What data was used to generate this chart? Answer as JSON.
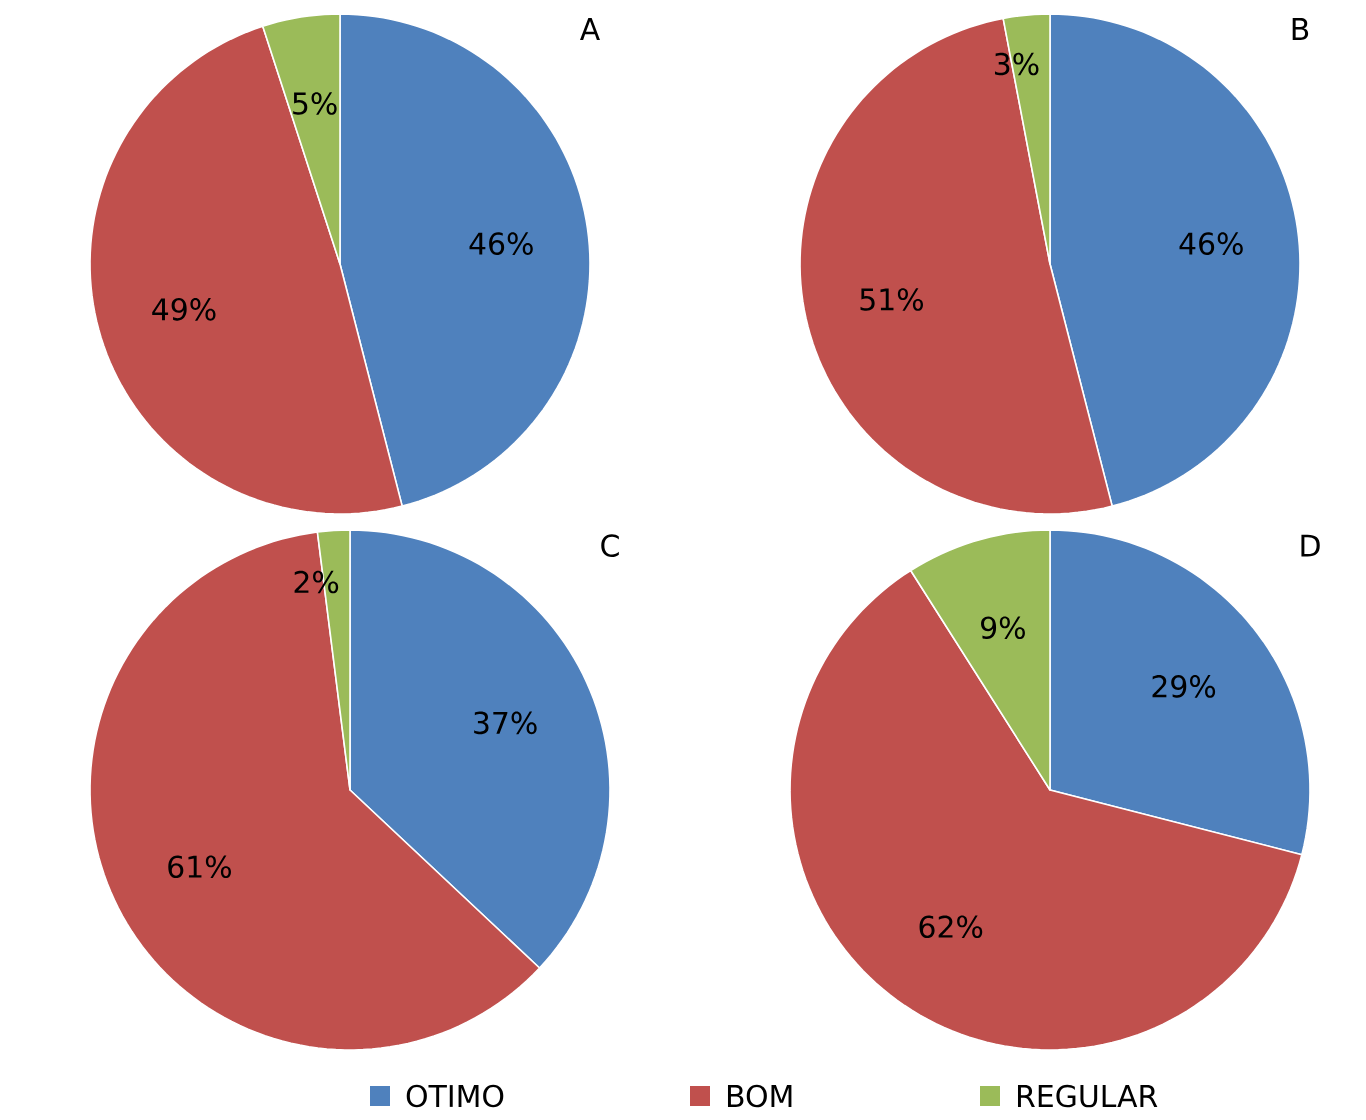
{
  "chart_data": [
    {
      "type": "pie",
      "title": "A",
      "categories": [
        null,
        null,
        null
      ],
      "values": [
        46,
        49,
        5
      ],
      "value_labels": [
        "46%",
        "49%",
        "5%"
      ],
      "colors": [
        "#4f81bd",
        "#c0504d",
        "#9bbb59"
      ]
    },
    {
      "type": "pie",
      "title": "B",
      "categories": [
        null,
        null,
        null
      ],
      "values": [
        46,
        51,
        3
      ],
      "value_labels": [
        "46%",
        "51%",
        "3%"
      ],
      "colors": [
        "#4f81bd",
        "#c0504d",
        "#9bbb59"
      ]
    },
    {
      "type": "pie",
      "title": "C",
      "categories": [
        null,
        null,
        null
      ],
      "values": [
        37,
        61,
        2
      ],
      "value_labels": [
        "37%",
        "61%",
        "2%"
      ],
      "colors": [
        "#4f81bd",
        "#c0504d",
        "#9bbb59"
      ]
    },
    {
      "type": "pie",
      "title": "D",
      "categories": [
        "OTIMO",
        "BOM",
        "REGULAR"
      ],
      "values": [
        29,
        62,
        9
      ],
      "value_labels": [
        "29%",
        "62%",
        "9%"
      ],
      "colors": [
        "#4f81bd",
        "#c0504d",
        "#9bbb59"
      ],
      "legend": "bottom"
    }
  ]
}
